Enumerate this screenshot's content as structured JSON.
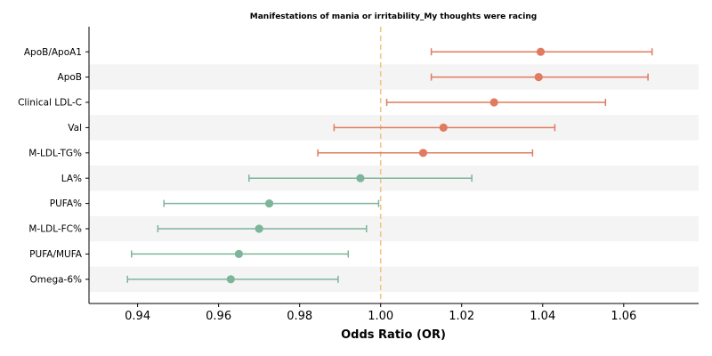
{
  "chart_data": {
    "type": "scatter",
    "title": "Manifestations of mania or irritability_My thoughts were racing",
    "xlabel": "Odds Ratio (OR)",
    "ylabel": "",
    "xlim": [
      0.928,
      1.0785
    ],
    "xticks": [
      "0.94",
      "0.96",
      "0.98",
      "1.00",
      "1.02",
      "1.04",
      "1.06"
    ],
    "xtick_values": [
      0.94,
      0.96,
      0.98,
      1.0,
      1.02,
      1.04,
      1.06
    ],
    "reference_line": 1.0,
    "reference_line_color": "#f2c48a",
    "colors": {
      "positive": "#e07b5f",
      "negative": "#7db59a",
      "band": "#f4f4f4"
    },
    "items": [
      {
        "label": "ApoB/ApoA1",
        "or": 1.0395,
        "lower": 1.0125,
        "upper": 1.067,
        "direction": "positive"
      },
      {
        "label": "ApoB",
        "or": 1.039,
        "lower": 1.0125,
        "upper": 1.066,
        "direction": "positive"
      },
      {
        "label": "Clinical LDL-C",
        "or": 1.028,
        "lower": 1.0015,
        "upper": 1.0555,
        "direction": "positive"
      },
      {
        "label": "Val",
        "or": 1.0155,
        "lower": 0.9885,
        "upper": 1.043,
        "direction": "positive"
      },
      {
        "label": "M-LDL-TG%",
        "or": 1.0105,
        "lower": 0.9845,
        "upper": 1.0375,
        "direction": "positive"
      },
      {
        "label": "LA%",
        "or": 0.995,
        "lower": 0.9675,
        "upper": 1.0225,
        "direction": "negative"
      },
      {
        "label": "PUFA%",
        "or": 0.9725,
        "lower": 0.9465,
        "upper": 0.9995,
        "direction": "negative"
      },
      {
        "label": "M-LDL-FC%",
        "or": 0.97,
        "lower": 0.945,
        "upper": 0.9965,
        "direction": "negative"
      },
      {
        "label": "PUFA/MUFA",
        "or": 0.965,
        "lower": 0.9385,
        "upper": 0.992,
        "direction": "negative"
      },
      {
        "label": "Omega-6%",
        "or": 0.963,
        "lower": 0.9375,
        "upper": 0.9895,
        "direction": "negative"
      }
    ]
  }
}
